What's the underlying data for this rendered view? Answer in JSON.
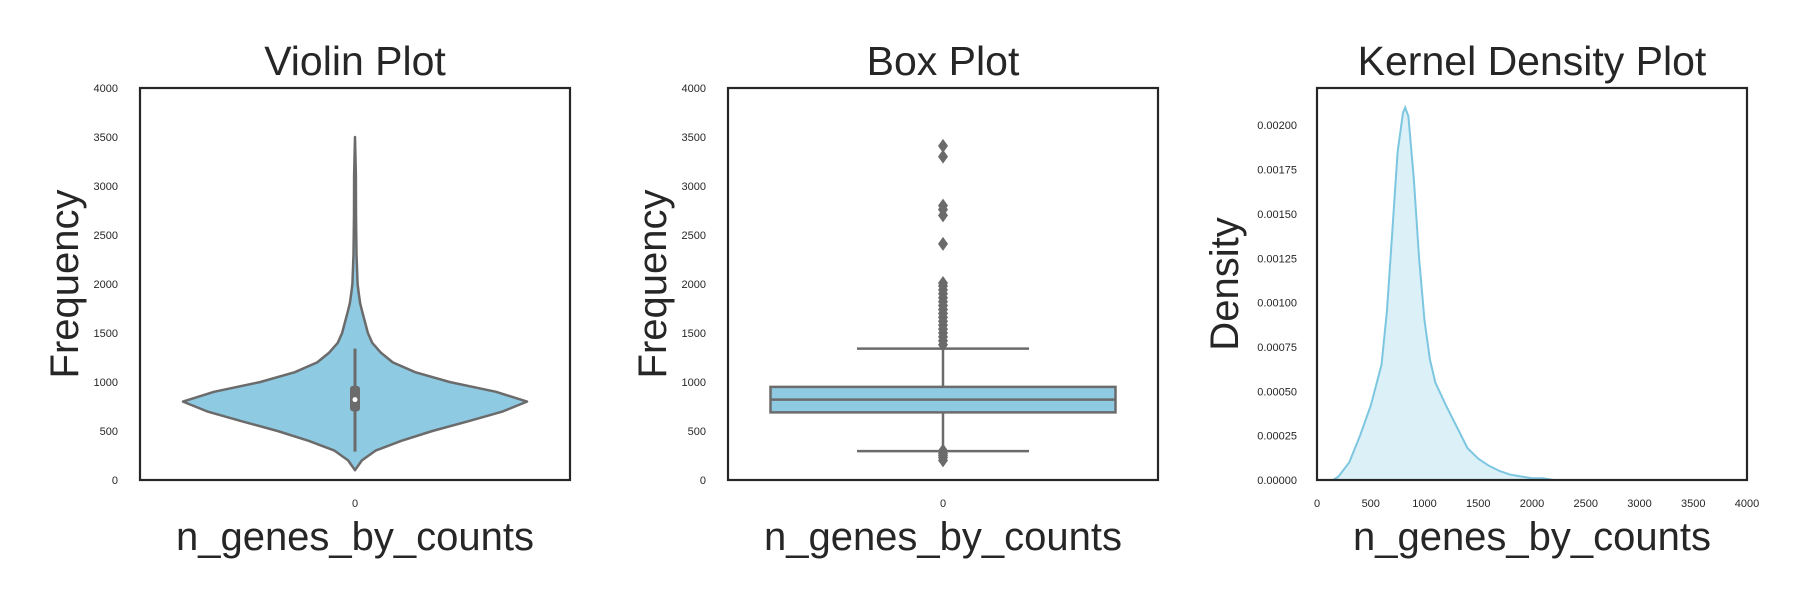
{
  "colors": {
    "fill": "#8fcae3",
    "kde_line": "#7cc6e0",
    "kde_fill": "#dcf0f8",
    "outline": "#6b6b6b",
    "frame": "#262626",
    "text": "#262626"
  },
  "chart_data": [
    {
      "type": "violin",
      "title": "Violin Plot",
      "xlabel": "n_genes_by_counts",
      "ylabel": "Frequency",
      "categories": [
        "0"
      ],
      "ylim": [
        0,
        4000
      ],
      "yticks": [
        "0",
        "500",
        "1000",
        "1500",
        "2000",
        "2500",
        "3000",
        "3500",
        "4000"
      ],
      "density_profile": [
        {
          "y": 100,
          "w": 0.0
        },
        {
          "y": 200,
          "w": 0.04
        },
        {
          "y": 300,
          "w": 0.12
        },
        {
          "y": 400,
          "w": 0.27
        },
        {
          "y": 500,
          "w": 0.45
        },
        {
          "y": 600,
          "w": 0.66
        },
        {
          "y": 700,
          "w": 0.86
        },
        {
          "y": 800,
          "w": 1.0
        },
        {
          "y": 900,
          "w": 0.82
        },
        {
          "y": 1000,
          "w": 0.55
        },
        {
          "y": 1100,
          "w": 0.35
        },
        {
          "y": 1200,
          "w": 0.22
        },
        {
          "y": 1300,
          "w": 0.15
        },
        {
          "y": 1400,
          "w": 0.1
        },
        {
          "y": 1500,
          "w": 0.075
        },
        {
          "y": 1600,
          "w": 0.06
        },
        {
          "y": 1700,
          "w": 0.045
        },
        {
          "y": 1800,
          "w": 0.03
        },
        {
          "y": 1900,
          "w": 0.022
        },
        {
          "y": 2000,
          "w": 0.015
        },
        {
          "y": 2300,
          "w": 0.009
        },
        {
          "y": 2700,
          "w": 0.006
        },
        {
          "y": 3100,
          "w": 0.005
        },
        {
          "y": 3500,
          "w": 0.0
        }
      ],
      "inner_box": {
        "q1": 700,
        "median": 820,
        "q3": 960,
        "whisker_low": 290,
        "whisker_high": 1340
      }
    },
    {
      "type": "box",
      "title": "Box Plot",
      "xlabel": "n_genes_by_counts",
      "ylabel": "Frequency",
      "categories": [
        "0"
      ],
      "ylim": [
        0,
        4000
      ],
      "yticks": [
        "0",
        "500",
        "1000",
        "1500",
        "2000",
        "2500",
        "3000",
        "3500",
        "4000"
      ],
      "box": {
        "q1": 690,
        "median": 820,
        "q3": 950,
        "whisker_low": 295,
        "whisker_high": 1340
      },
      "outliers": [
        200,
        230,
        250,
        270,
        300,
        1380,
        1420,
        1460,
        1500,
        1540,
        1580,
        1620,
        1660,
        1700,
        1740,
        1780,
        1820,
        1860,
        1900,
        1940,
        1980,
        2010,
        2410,
        2700,
        2760,
        2800,
        3300,
        3410
      ]
    },
    {
      "type": "area",
      "title": "Kernel Density Plot",
      "xlabel": "n_genes_by_counts",
      "ylabel": "Density",
      "xlim": [
        0,
        4000
      ],
      "ylim": [
        0,
        0.00221
      ],
      "xticks": [
        "0",
        "500",
        "1000",
        "1500",
        "2000",
        "2500",
        "3000",
        "3500",
        "4000"
      ],
      "yticks": [
        "0.00000",
        "0.00025",
        "0.00050",
        "0.00075",
        "0.00100",
        "0.00125",
        "0.00150",
        "0.00175",
        "0.00200"
      ],
      "x": [
        150,
        200,
        300,
        400,
        500,
        600,
        650,
        700,
        750,
        800,
        820,
        850,
        900,
        950,
        1000,
        1050,
        1100,
        1200,
        1300,
        1400,
        1500,
        1600,
        1700,
        1800,
        1900,
        2000,
        2100,
        2200,
        2500,
        2800,
        3100,
        3500
      ],
      "y": [
        0.0,
        2e-05,
        0.0001,
        0.00025,
        0.00042,
        0.00065,
        0.00095,
        0.0014,
        0.00185,
        0.00207,
        0.0021,
        0.00205,
        0.0017,
        0.00125,
        0.0009,
        0.00068,
        0.00055,
        0.00042,
        0.0003,
        0.00018,
        0.00012,
        8e-05,
        5e-05,
        3e-05,
        2e-05,
        1e-05,
        1e-05,
        0.0,
        0.0,
        0.0,
        0.0,
        0.0
      ]
    }
  ]
}
